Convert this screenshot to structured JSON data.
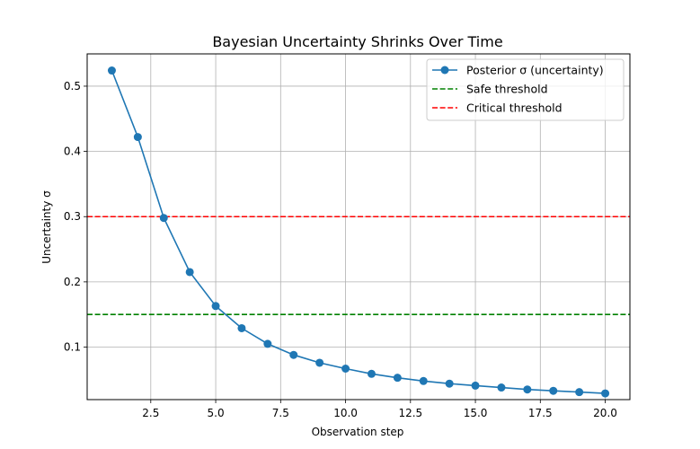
{
  "chart_data": {
    "type": "line",
    "title": "Bayesian Uncertainty Shrinks Over Time",
    "xlabel": "Observation step",
    "ylabel": "Uncertainty σ",
    "xlim": [
      0.05,
      20.95
    ],
    "ylim": [
      0.0195,
      0.5495
    ],
    "x_ticks": [
      2.5,
      5.0,
      7.5,
      10.0,
      12.5,
      15.0,
      17.5,
      20.0
    ],
    "x_tick_labels": [
      "2.5",
      "5.0",
      "7.5",
      "10.0",
      "12.5",
      "15.0",
      "17.5",
      "20.0"
    ],
    "y_ticks": [
      0.1,
      0.2,
      0.3,
      0.4,
      0.5
    ],
    "y_tick_labels": [
      "0.1",
      "0.2",
      "0.3",
      "0.4",
      "0.5"
    ],
    "grid": true,
    "legend_position": "top-right",
    "series": [
      {
        "name": "Posterior σ (uncertainty)",
        "color": "#1f77b4",
        "style": "solid",
        "marker": "circle",
        "x": [
          1,
          2,
          3,
          4,
          5,
          6,
          7,
          8,
          9,
          10,
          11,
          12,
          13,
          14,
          15,
          16,
          17,
          18,
          19,
          20
        ],
        "y": [
          0.524,
          0.422,
          0.298,
          0.215,
          0.163,
          0.129,
          0.105,
          0.088,
          0.076,
          0.067,
          0.059,
          0.053,
          0.048,
          0.044,
          0.041,
          0.038,
          0.035,
          0.033,
          0.031,
          0.029
        ]
      },
      {
        "name": "Safe threshold",
        "color": "#008000",
        "style": "dashed",
        "y": 0.15
      },
      {
        "name": "Critical threshold",
        "color": "#ff0000",
        "style": "dashed",
        "y": 0.3
      }
    ]
  }
}
